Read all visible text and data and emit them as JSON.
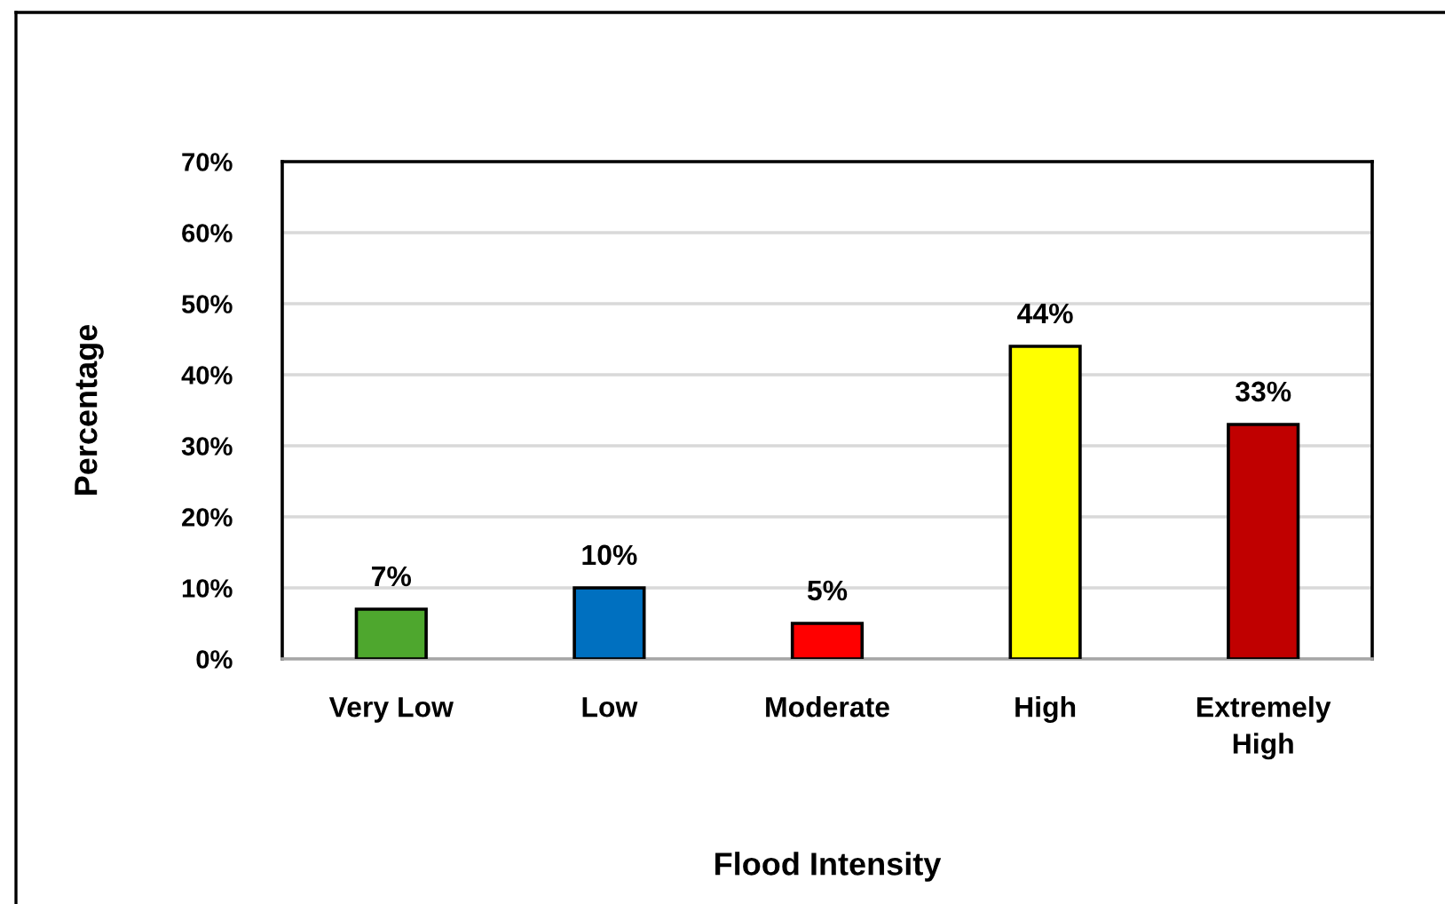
{
  "chart_data": {
    "type": "bar",
    "categories": [
      "Very Low",
      "Low",
      "Moderate",
      "High",
      "Extremely High"
    ],
    "values": [
      7,
      10,
      5,
      44,
      33
    ],
    "colors": [
      "#4ea72e",
      "#0070c0",
      "#ff0000",
      "#ffff00",
      "#c00000"
    ],
    "value_labels": [
      "7%",
      "10%",
      "5%",
      "44%",
      "33%"
    ],
    "xlabel": "Flood Intensity",
    "ylabel": "Percentage",
    "ylim": [
      0,
      70
    ],
    "yticks": [
      {
        "value": 0,
        "label": "0%"
      },
      {
        "value": 10,
        "label": "10%"
      },
      {
        "value": 20,
        "label": "20%"
      },
      {
        "value": 30,
        "label": "30%"
      },
      {
        "value": 40,
        "label": "40%"
      },
      {
        "value": 50,
        "label": "50%"
      },
      {
        "value": 60,
        "label": "60%"
      },
      {
        "value": 70,
        "label": "70%"
      }
    ],
    "grid": "y"
  }
}
